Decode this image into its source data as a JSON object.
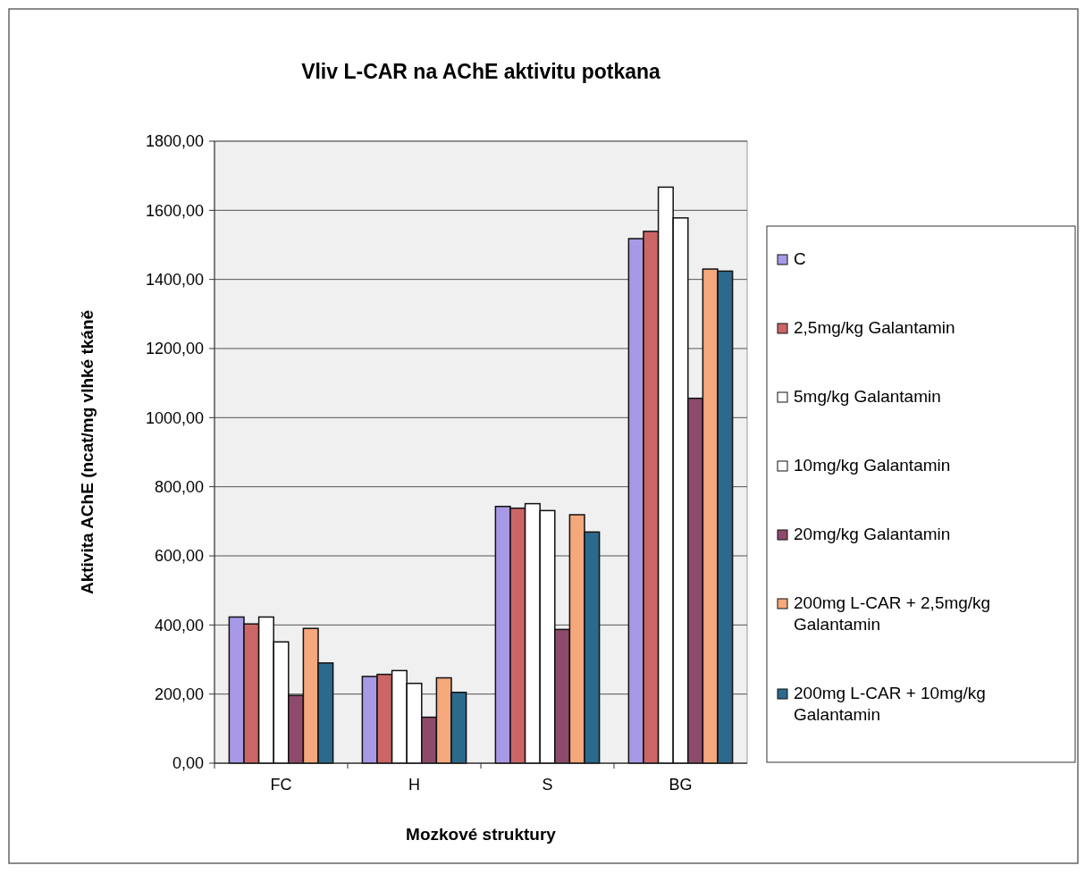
{
  "chart_data": {
    "type": "bar",
    "title": "Vliv L-CAR na AChE aktivitu potkana",
    "xlabel": "Mozkové struktury",
    "ylabel": "Aktivita AChE (ncat/mg vlhké tkáně",
    "categories": [
      "FC",
      "H",
      "S",
      "BG"
    ],
    "ylim": [
      0,
      1800
    ],
    "yticks": [
      {
        "value": 0,
        "label": "0,00"
      },
      {
        "value": 200,
        "label": "200,00"
      },
      {
        "value": 400,
        "label": "400,00"
      },
      {
        "value": 600,
        "label": "600,00"
      },
      {
        "value": 800,
        "label": "800,00"
      },
      {
        "value": 1000,
        "label": "1000,00"
      },
      {
        "value": 1200,
        "label": "1200,00"
      },
      {
        "value": 1400,
        "label": "1400,00"
      },
      {
        "value": 1600,
        "label": "1600,00"
      },
      {
        "value": 1800,
        "label": "1800,00"
      }
    ],
    "grid": "y",
    "legend": "right",
    "series": [
      {
        "name": "C",
        "color": "#a899e6",
        "values": [
          423,
          251,
          743,
          1518
        ]
      },
      {
        "name": "2,5mg/kg Galantamin",
        "color": "#cc6666",
        "values": [
          403,
          257,
          738,
          1539
        ]
      },
      {
        "name": "5mg/kg Galantamin",
        "color": "#ffffff",
        "values": [
          423,
          268,
          751,
          1667
        ]
      },
      {
        "name": "10mg/kg Galantamin",
        "color": "#ffffff",
        "values": [
          351,
          231,
          731,
          1578
        ]
      },
      {
        "name": "20mg/kg Galantamin",
        "color": "#8e4a6a",
        "values": [
          196,
          133,
          387,
          1056
        ]
      },
      {
        "name": "200mg L-CAR + 2,5mg/kg Galantamin",
        "color": "#f4a87c",
        "values": [
          390,
          247,
          719,
          1430
        ]
      },
      {
        "name": "200mg L-CAR + 10mg/kg Galantamin",
        "color": "#2b6a8c",
        "values": [
          290,
          205,
          669,
          1424
        ]
      }
    ]
  }
}
